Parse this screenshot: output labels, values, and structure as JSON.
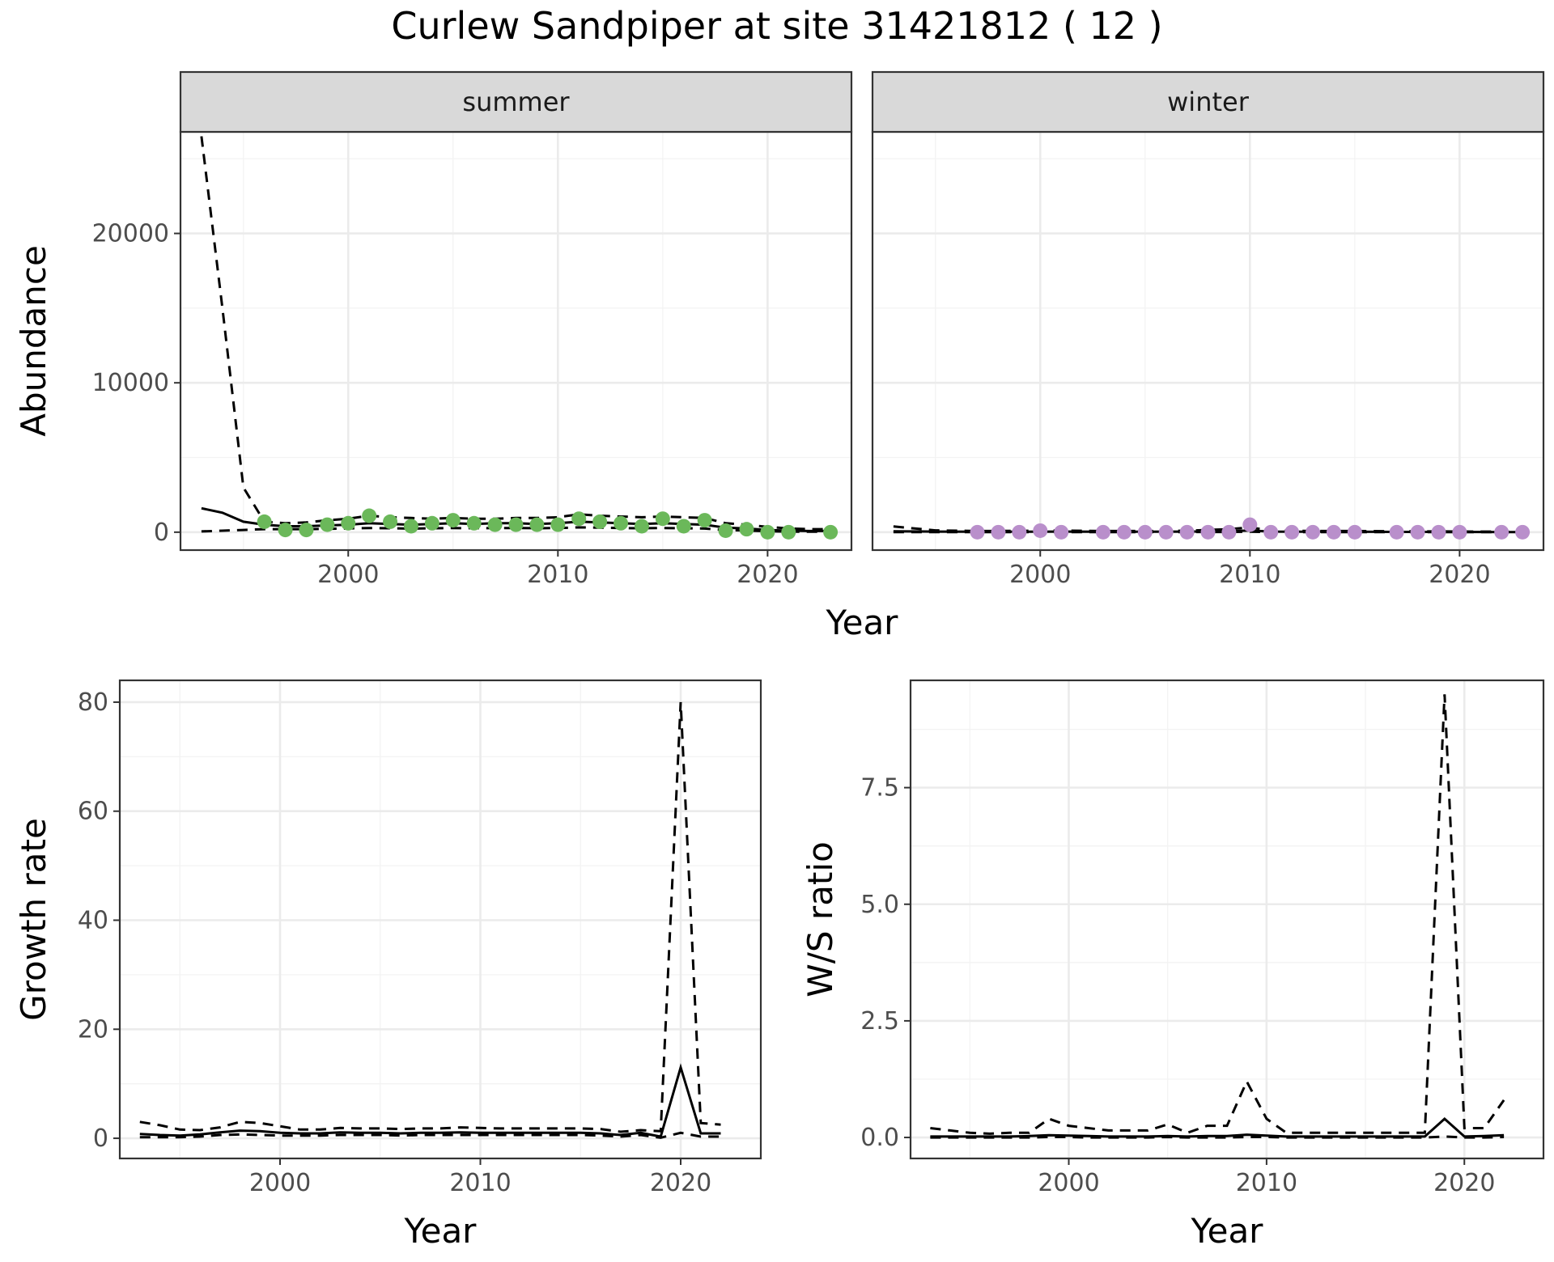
{
  "title": "Curlew Sandpiper at site 31421812 ( 12 )",
  "colors": {
    "summer_points": "#6bb85a",
    "winter_points": "#b98fcb",
    "lines": "#000000"
  },
  "chart_data": [
    {
      "id": "abundance",
      "type": "line+scatter",
      "facets": [
        "summer",
        "winter"
      ],
      "xlabel": "Year",
      "ylabel": "Abundance",
      "xlim": [
        1992,
        2024
      ],
      "ylim": [
        -1200,
        26800
      ],
      "x_ticks": [
        2000,
        2010,
        2020
      ],
      "y_ticks": [
        0,
        10000,
        20000
      ],
      "grid": true,
      "summer": {
        "estimate": {
          "x": [
            1993,
            1994,
            1995,
            1996,
            1997,
            1998,
            1999,
            2000,
            2001,
            2002,
            2003,
            2004,
            2005,
            2006,
            2007,
            2008,
            2009,
            2010,
            2011,
            2012,
            2013,
            2014,
            2015,
            2016,
            2017,
            2018,
            2019,
            2020,
            2021,
            2022,
            2023
          ],
          "y": [
            1600,
            1300,
            700,
            500,
            400,
            400,
            450,
            500,
            600,
            550,
            500,
            550,
            600,
            550,
            600,
            600,
            550,
            600,
            700,
            650,
            600,
            550,
            600,
            550,
            500,
            300,
            250,
            150,
            100,
            80,
            80
          ]
        },
        "upper": {
          "x": [
            1993,
            1994,
            1995,
            1996,
            1997,
            1998,
            1999,
            2000,
            2001,
            2002,
            2003,
            2004,
            2005,
            2006,
            2007,
            2008,
            2009,
            2010,
            2011,
            2012,
            2013,
            2014,
            2015,
            2016,
            2017,
            2018,
            2019,
            2020,
            2021,
            2022,
            2023
          ],
          "y": [
            26500,
            15000,
            3000,
            700,
            600,
            650,
            800,
            900,
            1100,
            1000,
            950,
            900,
            950,
            900,
            900,
            950,
            950,
            1000,
            1200,
            1100,
            1050,
            1000,
            1050,
            1000,
            950,
            600,
            500,
            350,
            250,
            200,
            200
          ]
        },
        "lower": {
          "x": [
            1993,
            1994,
            1995,
            1996,
            1997,
            1998,
            1999,
            2000,
            2001,
            2002,
            2003,
            2004,
            2005,
            2006,
            2007,
            2008,
            2009,
            2010,
            2011,
            2012,
            2013,
            2014,
            2015,
            2016,
            2017,
            2018,
            2019,
            2020,
            2021,
            2022,
            2023
          ],
          "y": [
            50,
            100,
            150,
            200,
            200,
            200,
            220,
            250,
            280,
            260,
            240,
            260,
            280,
            260,
            280,
            280,
            260,
            280,
            320,
            300,
            280,
            260,
            280,
            260,
            240,
            140,
            110,
            60,
            40,
            30,
            30
          ]
        },
        "observed": {
          "x": [
            1996,
            1997,
            1998,
            1999,
            2000,
            2001,
            2002,
            2003,
            2004,
            2005,
            2006,
            2007,
            2008,
            2009,
            2010,
            2011,
            2012,
            2013,
            2014,
            2015,
            2016,
            2017,
            2018,
            2019,
            2020,
            2021,
            2023
          ],
          "y": [
            700,
            150,
            150,
            500,
            600,
            1100,
            700,
            400,
            600,
            800,
            600,
            500,
            500,
            500,
            500,
            900,
            700,
            600,
            400,
            900,
            400,
            800,
            100,
            200,
            0,
            0,
            0
          ]
        }
      },
      "winter": {
        "estimate": {
          "x": [
            1993,
            1995,
            1997,
            1999,
            2001,
            2003,
            2005,
            2007,
            2009,
            2010,
            2011,
            2013,
            2015,
            2017,
            2019,
            2021,
            2023
          ],
          "y": [
            60,
            40,
            30,
            30,
            40,
            30,
            30,
            40,
            60,
            110,
            40,
            30,
            30,
            20,
            20,
            15,
            10
          ]
        },
        "upper": {
          "x": [
            1993,
            1995,
            1997,
            1999,
            2001,
            2003,
            2005,
            2007,
            2009,
            2010,
            2011,
            2013,
            2015,
            2017,
            2019,
            2021,
            2023
          ],
          "y": [
            380,
            120,
            80,
            90,
            110,
            80,
            80,
            100,
            200,
            320,
            110,
            80,
            80,
            60,
            50,
            40,
            30
          ]
        },
        "lower": {
          "x": [
            1993,
            1995,
            1997,
            1999,
            2001,
            2003,
            2005,
            2007,
            2009,
            2010,
            2011,
            2013,
            2015,
            2017,
            2019,
            2021,
            2023
          ],
          "y": [
            5,
            5,
            5,
            5,
            10,
            5,
            5,
            10,
            15,
            30,
            10,
            5,
            5,
            5,
            3,
            2,
            1
          ]
        },
        "observed": {
          "x": [
            1997,
            1998,
            1999,
            2000,
            2001,
            2003,
            2004,
            2005,
            2006,
            2007,
            2008,
            2009,
            2010,
            2011,
            2012,
            2013,
            2014,
            2015,
            2017,
            2018,
            2019,
            2020,
            2022,
            2023
          ],
          "y": [
            0,
            0,
            0,
            100,
            0,
            0,
            0,
            0,
            0,
            0,
            0,
            0,
            500,
            0,
            0,
            0,
            0,
            0,
            0,
            0,
            0,
            0,
            0,
            0
          ]
        }
      }
    },
    {
      "id": "growth",
      "type": "line",
      "xlabel": "Year",
      "ylabel": "Growth rate",
      "xlim": [
        1992,
        2024
      ],
      "ylim": [
        -3.7,
        84
      ],
      "x_ticks": [
        2000,
        2010,
        2020
      ],
      "y_ticks": [
        0,
        20,
        40,
        60,
        80
      ],
      "grid": true,
      "estimate": {
        "x": [
          1993,
          1994,
          1995,
          1996,
          1997,
          1998,
          1999,
          2000,
          2001,
          2002,
          2003,
          2004,
          2005,
          2006,
          2007,
          2008,
          2009,
          2010,
          2011,
          2012,
          2013,
          2014,
          2015,
          2016,
          2017,
          2018,
          2019,
          2020,
          2021,
          2022
        ],
        "y": [
          0.8,
          0.6,
          0.5,
          0.7,
          1.1,
          1.4,
          1.3,
          1.0,
          0.9,
          0.9,
          1.1,
          1.0,
          1.0,
          0.9,
          1.0,
          1.0,
          1.1,
          1.0,
          1.0,
          1.0,
          1.0,
          1.0,
          1.0,
          0.9,
          0.6,
          1.0,
          0.3,
          13.0,
          0.9,
          0.9
        ]
      },
      "upper": {
        "x": [
          1993,
          1994,
          1995,
          1996,
          1997,
          1998,
          1999,
          2000,
          2001,
          2002,
          2003,
          2004,
          2005,
          2006,
          2007,
          2008,
          2009,
          2010,
          2011,
          2012,
          2013,
          2014,
          2015,
          2016,
          2017,
          2018,
          2019,
          2020,
          2021,
          2022
        ],
        "y": [
          3.0,
          2.4,
          1.6,
          1.5,
          2.0,
          3.0,
          2.8,
          2.2,
          1.6,
          1.6,
          1.9,
          1.8,
          1.8,
          1.7,
          1.8,
          1.8,
          2.0,
          1.9,
          1.8,
          1.8,
          1.8,
          1.8,
          1.8,
          1.7,
          1.2,
          1.5,
          1.3,
          80.0,
          2.8,
          2.5
        ]
      },
      "lower": {
        "x": [
          1993,
          1994,
          1995,
          1996,
          1997,
          1998,
          1999,
          2000,
          2001,
          2002,
          2003,
          2004,
          2005,
          2006,
          2007,
          2008,
          2009,
          2010,
          2011,
          2012,
          2013,
          2014,
          2015,
          2016,
          2017,
          2018,
          2019,
          2020,
          2021,
          2022
        ],
        "y": [
          0.2,
          0.2,
          0.2,
          0.3,
          0.6,
          0.7,
          0.6,
          0.5,
          0.5,
          0.5,
          0.6,
          0.6,
          0.6,
          0.5,
          0.6,
          0.6,
          0.6,
          0.6,
          0.6,
          0.6,
          0.6,
          0.6,
          0.6,
          0.5,
          0.3,
          0.6,
          0.1,
          1.0,
          0.3,
          0.3
        ]
      }
    },
    {
      "id": "ratio",
      "type": "line",
      "xlabel": "Year",
      "ylabel": "W/S ratio",
      "xlim": [
        1992,
        2024
      ],
      "ylim": [
        -0.45,
        9.8
      ],
      "x_ticks": [
        2000,
        2010,
        2020
      ],
      "y_ticks": [
        0.0,
        2.5,
        5.0,
        7.5
      ],
      "y_tick_labels": [
        "0.0",
        "2.5",
        "5.0",
        "7.5"
      ],
      "grid": true,
      "estimate": {
        "x": [
          1993,
          1994,
          1995,
          1996,
          1997,
          1998,
          1999,
          2000,
          2001,
          2002,
          2003,
          2004,
          2005,
          2006,
          2007,
          2008,
          2009,
          2010,
          2011,
          2012,
          2013,
          2014,
          2015,
          2016,
          2017,
          2018,
          2019,
          2020,
          2021,
          2022
        ],
        "y": [
          0.02,
          0.02,
          0.02,
          0.02,
          0.02,
          0.03,
          0.05,
          0.04,
          0.03,
          0.02,
          0.02,
          0.02,
          0.03,
          0.02,
          0.03,
          0.03,
          0.06,
          0.04,
          0.02,
          0.02,
          0.02,
          0.02,
          0.02,
          0.02,
          0.02,
          0.02,
          0.4,
          0.02,
          0.03,
          0.05
        ]
      },
      "upper": {
        "x": [
          1993,
          1994,
          1995,
          1996,
          1997,
          1998,
          1999,
          2000,
          2001,
          2002,
          2003,
          2004,
          2005,
          2006,
          2007,
          2008,
          2009,
          2010,
          2011,
          2012,
          2013,
          2014,
          2015,
          2016,
          2017,
          2018,
          2019,
          2020,
          2021,
          2022
        ],
        "y": [
          0.2,
          0.15,
          0.1,
          0.08,
          0.1,
          0.1,
          0.4,
          0.25,
          0.2,
          0.15,
          0.15,
          0.15,
          0.28,
          0.1,
          0.25,
          0.25,
          1.2,
          0.4,
          0.1,
          0.1,
          0.1,
          0.1,
          0.1,
          0.1,
          0.1,
          0.1,
          9.5,
          0.2,
          0.2,
          0.8
        ]
      },
      "lower": {
        "x": [
          1993,
          1994,
          1995,
          1996,
          1997,
          1998,
          1999,
          2000,
          2001,
          2002,
          2003,
          2004,
          2005,
          2006,
          2007,
          2008,
          2009,
          2010,
          2011,
          2012,
          2013,
          2014,
          2015,
          2016,
          2017,
          2018,
          2019,
          2020,
          2021,
          2022
        ],
        "y": [
          0.0,
          0.0,
          0.0,
          0.0,
          0.0,
          0.0,
          0.01,
          0.01,
          0.0,
          0.0,
          0.0,
          0.0,
          0.01,
          0.0,
          0.0,
          0.0,
          0.01,
          0.01,
          0.0,
          0.0,
          0.0,
          0.0,
          0.0,
          0.0,
          0.0,
          0.0,
          0.02,
          0.0,
          0.0,
          0.01
        ]
      }
    }
  ]
}
